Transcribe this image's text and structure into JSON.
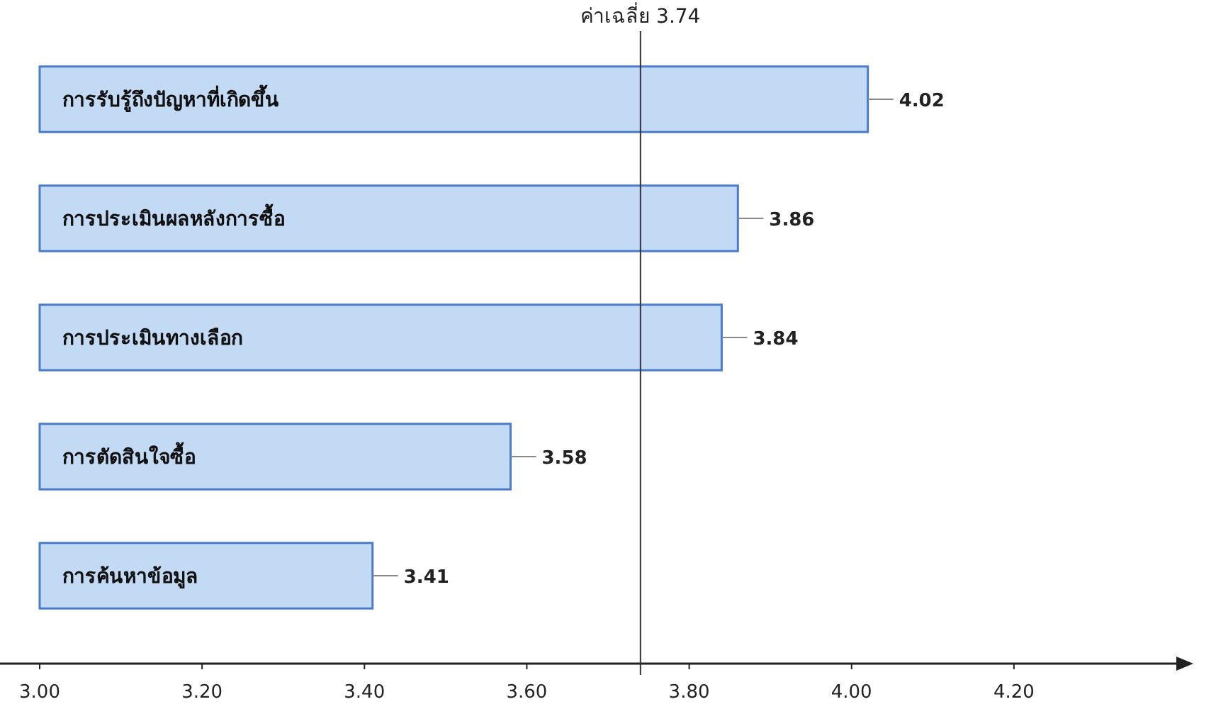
{
  "chart_data": {
    "type": "bar",
    "orientation": "horizontal",
    "categories": [
      "การรับรู้ถึงปัญหาที่เกิดขึ้น",
      "การประเมินผลหลังการซื้อ",
      "การประเมินทางเลือก",
      "การตัดสินใจซื้อ",
      "การค้นหาข้อมูล"
    ],
    "values": [
      4.02,
      3.86,
      3.84,
      3.58,
      3.41
    ],
    "color": "#c3daf4",
    "xlim": [
      3.0,
      4.4
    ],
    "xticks": [
      {
        "value": 3.0,
        "label": "3.00"
      },
      {
        "value": 3.2,
        "label": "3.20"
      },
      {
        "value": 3.4,
        "label": "3.40"
      },
      {
        "value": 3.6,
        "label": "3.60"
      },
      {
        "value": 3.8,
        "label": "3.80"
      },
      {
        "value": 4.0,
        "label": "4.00"
      },
      {
        "value": 4.2,
        "label": "4.20"
      }
    ],
    "ref_lines": [
      {
        "axis": "x",
        "value": 3.74,
        "label": "ค่าเฉลี่ย 3.74",
        "color": "#333333"
      }
    ],
    "data_labels": true
  }
}
